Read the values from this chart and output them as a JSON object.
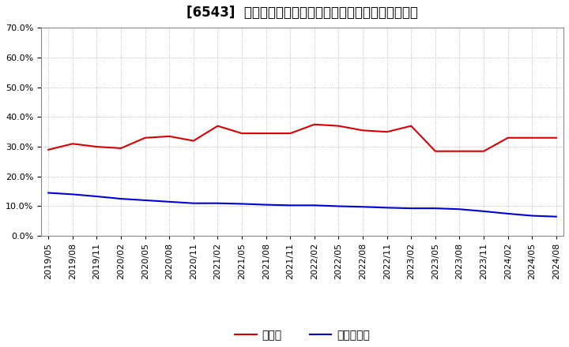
{
  "title": "[6543]  現預金、有利子負債の総資産に対する比率の推移",
  "x_labels": [
    "2019/05",
    "2019/08",
    "2019/11",
    "2020/02",
    "2020/05",
    "2020/08",
    "2020/11",
    "2021/02",
    "2021/05",
    "2021/08",
    "2021/11",
    "2022/02",
    "2022/05",
    "2022/08",
    "2022/11",
    "2023/02",
    "2023/05",
    "2023/08",
    "2023/11",
    "2024/02",
    "2024/05",
    "2024/08"
  ],
  "cash_values": [
    0.29,
    0.31,
    0.3,
    0.295,
    0.33,
    0.335,
    0.32,
    0.37,
    0.345,
    0.345,
    0.345,
    0.375,
    0.37,
    0.355,
    0.35,
    0.37,
    0.285,
    0.285,
    0.285,
    0.33,
    0.33,
    0.33
  ],
  "debt_values": [
    0.145,
    0.14,
    0.133,
    0.125,
    0.12,
    0.115,
    0.11,
    0.11,
    0.108,
    0.105,
    0.103,
    0.103,
    0.1,
    0.098,
    0.095,
    0.093,
    0.093,
    0.09,
    0.083,
    0.075,
    0.068,
    0.065
  ],
  "cash_color": "#dd0000",
  "debt_color": "#0000dd",
  "background_color": "#ffffff",
  "plot_bg_color": "#ffffff",
  "grid_color": "#aaaaaa",
  "ylim": [
    0.0,
    0.7
  ],
  "yticks": [
    0.0,
    0.1,
    0.2,
    0.3,
    0.4,
    0.5,
    0.6,
    0.7
  ],
  "legend_cash": "現預金",
  "legend_debt": "有利子負債",
  "title_fontsize": 12,
  "axis_fontsize": 8,
  "legend_fontsize": 10
}
